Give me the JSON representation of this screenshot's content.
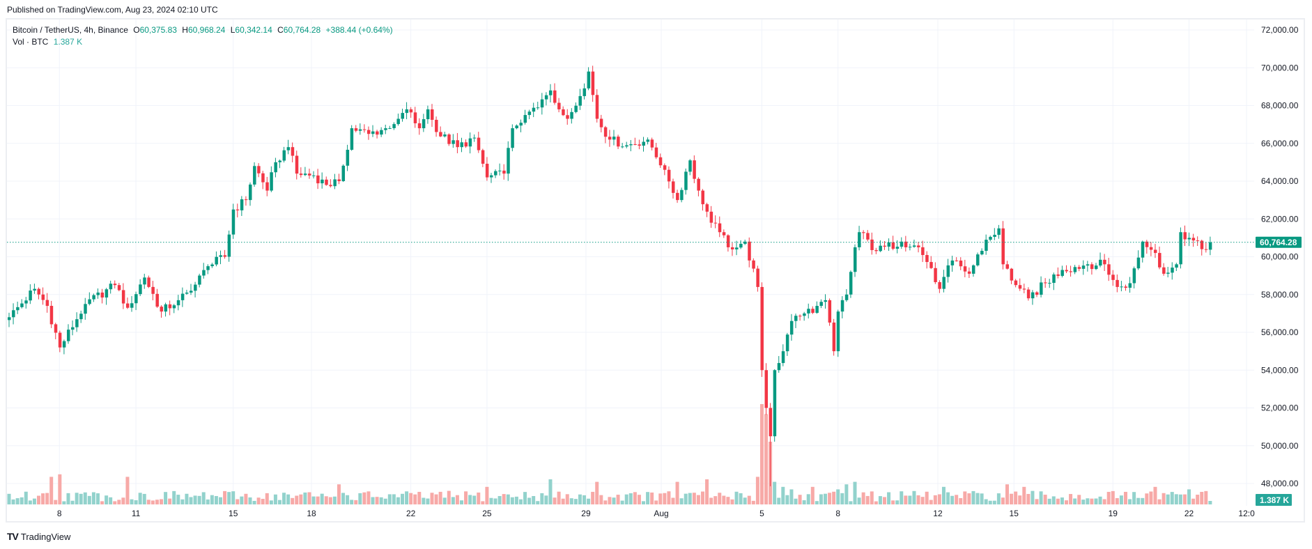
{
  "published": "Published on TradingView.com, Aug 23, 2024 02:10 UTC",
  "legend": {
    "symbol": "Bitcoin / TetherUS, 4h, Binance",
    "o_label": "O",
    "o": "60,375.83",
    "h_label": "H",
    "h": "60,968.24",
    "l_label": "L",
    "l": "60,342.14",
    "c_label": "C",
    "c": "60,764.28",
    "change": "+388.44 (+0.64%)",
    "vol_label": "Vol · BTC",
    "vol": "1.387 K"
  },
  "logo": {
    "mark": "TV",
    "text": "TradingView"
  },
  "colors": {
    "up": "#089981",
    "down": "#f23645",
    "vol_up": "#92d2cc",
    "vol_down": "#f7a9a7",
    "grid": "#f0f3fa",
    "label_bg": "#089981",
    "vol_label_bg": "#26a69a"
  },
  "chart_data": {
    "type": "candlestick",
    "title": "Bitcoin / TetherUS, 4h, Binance",
    "interval": "4h",
    "ylim": [
      47000,
      72500
    ],
    "y_ticks": [
      "72,000.00",
      "70,000.00",
      "68,000.00",
      "66,000.00",
      "64,000.00",
      "62,000.00",
      "60,000.00",
      "58,000.00",
      "56,000.00",
      "54,000.00",
      "52,000.00",
      "50,000.00",
      "48,000.00"
    ],
    "y_tick_values": [
      72000,
      70000,
      68000,
      66000,
      64000,
      62000,
      60000,
      58000,
      56000,
      54000,
      52000,
      50000,
      48000
    ],
    "last_price": 60764.28,
    "last_price_label": "60,764.28",
    "last_volume_label": "1.387 K",
    "candle_count": 285,
    "x_ticks": [
      {
        "label": "8",
        "i": 11.9
      },
      {
        "label": "11",
        "i": 30
      },
      {
        "label": "15",
        "i": 53
      },
      {
        "label": "18",
        "i": 71.5
      },
      {
        "label": "22",
        "i": 95
      },
      {
        "label": "25",
        "i": 113
      },
      {
        "label": "29",
        "i": 136.4
      },
      {
        "label": "Aug",
        "i": 154.2
      },
      {
        "label": "5",
        "i": 178
      },
      {
        "label": "8",
        "i": 196
      },
      {
        "label": "12",
        "i": 219.6
      },
      {
        "label": "15",
        "i": 237.6
      },
      {
        "label": "19",
        "i": 261
      },
      {
        "label": "22",
        "i": 279
      },
      {
        "label": "12:0",
        "i": 292.6
      }
    ],
    "close_waypoints": [
      [
        0,
        56800
      ],
      [
        6,
        58300
      ],
      [
        9,
        57400
      ],
      [
        12,
        55200
      ],
      [
        18,
        57500
      ],
      [
        25,
        58500
      ],
      [
        28,
        57300
      ],
      [
        32,
        58900
      ],
      [
        36,
        57100
      ],
      [
        40,
        57700
      ],
      [
        43,
        58200
      ],
      [
        47,
        59500
      ],
      [
        51,
        60000
      ],
      [
        53,
        62500
      ],
      [
        56,
        63000
      ],
      [
        58,
        64800
      ],
      [
        61,
        63500
      ],
      [
        63,
        65000
      ],
      [
        66,
        65800
      ],
      [
        68,
        64400
      ],
      [
        72,
        64300
      ],
      [
        75,
        63800
      ],
      [
        78,
        64000
      ],
      [
        81,
        66800
      ],
      [
        85,
        66500
      ],
      [
        89,
        66800
      ],
      [
        92,
        67300
      ],
      [
        94,
        67800
      ],
      [
        97,
        66800
      ],
      [
        99,
        67800
      ],
      [
        101,
        66600
      ],
      [
        106,
        65800
      ],
      [
        110,
        66300
      ],
      [
        113,
        64200
      ],
      [
        117,
        64400
      ],
      [
        119,
        66800
      ],
      [
        122,
        67500
      ],
      [
        125,
        67900
      ],
      [
        128,
        68800
      ],
      [
        130,
        67800
      ],
      [
        132,
        67300
      ],
      [
        135,
        68500
      ],
      [
        137,
        69800
      ],
      [
        139,
        67300
      ],
      [
        142,
        66200
      ],
      [
        146,
        65900
      ],
      [
        151,
        66200
      ],
      [
        155,
        64600
      ],
      [
        158,
        63000
      ],
      [
        160,
        64500
      ],
      [
        161,
        65100
      ],
      [
        163,
        63500
      ],
      [
        166,
        61800
      ],
      [
        168,
        61300
      ],
      [
        170,
        60500
      ],
      [
        174,
        60800
      ],
      [
        177,
        58400
      ],
      [
        178,
        54000
      ],
      [
        179,
        52000
      ],
      [
        180,
        50500
      ],
      [
        181,
        54000
      ],
      [
        183,
        55000
      ],
      [
        185,
        56600
      ],
      [
        188,
        57000
      ],
      [
        191,
        57400
      ],
      [
        193,
        57700
      ],
      [
        195,
        55000
      ],
      [
        196,
        57100
      ],
      [
        198,
        58000
      ],
      [
        200,
        60500
      ],
      [
        201,
        61300
      ],
      [
        205,
        60300
      ],
      [
        211,
        60800
      ],
      [
        215,
        60500
      ],
      [
        218,
        59400
      ],
      [
        220,
        58300
      ],
      [
        223,
        59800
      ],
      [
        227,
        59100
      ],
      [
        231,
        60900
      ],
      [
        234,
        61500
      ],
      [
        235,
        59600
      ],
      [
        238,
        58500
      ],
      [
        241,
        57800
      ],
      [
        245,
        58600
      ],
      [
        249,
        59300
      ],
      [
        255,
        59600
      ],
      [
        259,
        59600
      ],
      [
        262,
        58400
      ],
      [
        265,
        58600
      ],
      [
        268,
        60800
      ],
      [
        271,
        60200
      ],
      [
        273,
        59100
      ],
      [
        276,
        59600
      ],
      [
        277,
        61300
      ],
      [
        279,
        61000
      ],
      [
        282,
        60400
      ],
      [
        284,
        60764.28
      ]
    ],
    "volume_unit": "K BTC",
    "volume_spikes": [
      [
        10,
        11
      ],
      [
        12,
        12
      ],
      [
        28,
        11
      ],
      [
        78,
        8
      ],
      [
        113,
        7
      ],
      [
        128,
        10
      ],
      [
        139,
        9
      ],
      [
        158,
        9
      ],
      [
        165,
        10
      ],
      [
        177,
        11
      ],
      [
        178,
        40
      ],
      [
        179,
        36
      ],
      [
        180,
        25
      ],
      [
        181,
        9
      ],
      [
        183,
        7
      ],
      [
        185,
        6
      ],
      [
        190,
        7
      ],
      [
        196,
        6
      ],
      [
        198,
        8
      ],
      [
        200,
        9
      ],
      [
        221,
        7
      ],
      [
        236,
        8
      ],
      [
        240,
        7
      ],
      [
        271,
        7
      ],
      [
        279,
        6
      ],
      [
        282,
        5
      ]
    ]
  }
}
